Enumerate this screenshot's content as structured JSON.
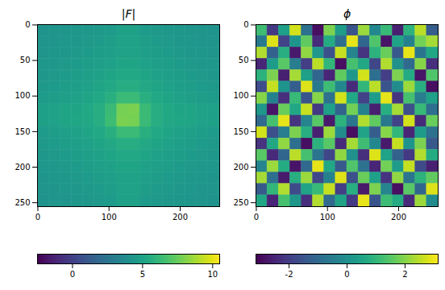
{
  "chart_data": [
    {
      "type": "heatmap",
      "title": "|F|",
      "color": "viridis",
      "xlim": [
        -0.5,
        255.5
      ],
      "ylim": [
        255.5,
        -0.5
      ],
      "xticks": [
        0,
        100,
        200
      ],
      "yticks": [
        0,
        50,
        100,
        150,
        200,
        250
      ],
      "cells": [
        [
          4.2,
          4.3,
          4.3,
          4.4,
          4.4,
          4.5,
          4.6,
          4.9,
          4.9,
          4.6,
          4.5,
          4.4,
          4.4,
          4.3,
          4.3,
          4.2
        ],
        [
          4.3,
          4.3,
          4.4,
          4.4,
          4.5,
          4.6,
          4.7,
          5.0,
          5.0,
          4.7,
          4.6,
          4.5,
          4.4,
          4.4,
          4.3,
          4.3
        ],
        [
          4.3,
          4.4,
          4.4,
          4.5,
          4.6,
          4.7,
          4.8,
          5.0,
          5.0,
          4.8,
          4.7,
          4.6,
          4.5,
          4.4,
          4.4,
          4.3
        ],
        [
          4.4,
          4.4,
          4.5,
          4.6,
          4.7,
          4.8,
          4.9,
          5.1,
          5.1,
          4.9,
          4.8,
          4.7,
          4.6,
          4.5,
          4.4,
          4.4
        ],
        [
          4.4,
          4.5,
          4.6,
          4.7,
          4.8,
          4.9,
          5.1,
          5.3,
          5.3,
          5.1,
          4.9,
          4.8,
          4.7,
          4.6,
          4.5,
          4.4
        ],
        [
          4.5,
          4.6,
          4.7,
          4.8,
          4.9,
          5.1,
          5.3,
          5.6,
          5.6,
          5.3,
          5.1,
          4.9,
          4.8,
          4.7,
          4.6,
          4.5
        ],
        [
          4.6,
          4.7,
          4.8,
          4.9,
          5.1,
          5.3,
          5.7,
          6.3,
          6.3,
          5.7,
          5.3,
          5.1,
          4.9,
          4.8,
          4.7,
          4.6
        ],
        [
          4.9,
          5.0,
          5.1,
          5.1,
          5.3,
          5.6,
          6.3,
          7.8,
          7.9,
          6.3,
          5.6,
          5.3,
          5.1,
          5.1,
          5.0,
          4.9
        ],
        [
          4.9,
          5.0,
          5.1,
          5.2,
          5.3,
          5.6,
          6.4,
          7.9,
          7.8,
          6.3,
          5.6,
          5.3,
          5.2,
          5.1,
          5.0,
          4.9
        ],
        [
          4.6,
          4.7,
          4.8,
          4.9,
          5.1,
          5.3,
          5.7,
          6.3,
          6.3,
          5.7,
          5.3,
          5.1,
          4.9,
          4.8,
          4.7,
          4.6
        ],
        [
          4.5,
          4.6,
          4.7,
          4.8,
          4.9,
          5.1,
          5.3,
          5.6,
          5.6,
          5.3,
          5.1,
          4.9,
          4.8,
          4.7,
          4.6,
          4.5
        ],
        [
          4.4,
          4.5,
          4.6,
          4.7,
          4.8,
          4.9,
          5.1,
          5.3,
          5.3,
          5.1,
          4.9,
          4.8,
          4.7,
          4.6,
          4.5,
          4.4
        ],
        [
          4.4,
          4.4,
          4.5,
          4.6,
          4.7,
          4.8,
          4.9,
          5.1,
          5.1,
          4.9,
          4.8,
          4.7,
          4.6,
          4.5,
          4.4,
          4.4
        ],
        [
          4.3,
          4.4,
          4.4,
          4.5,
          4.6,
          4.7,
          4.8,
          5.0,
          5.0,
          4.8,
          4.7,
          4.6,
          4.5,
          4.4,
          4.4,
          4.3
        ],
        [
          4.3,
          4.3,
          4.4,
          4.4,
          4.5,
          4.6,
          4.7,
          5.0,
          5.0,
          4.7,
          4.6,
          4.5,
          4.4,
          4.4,
          4.3,
          4.3
        ],
        [
          4.2,
          4.3,
          4.3,
          4.4,
          4.4,
          4.5,
          4.6,
          4.9,
          4.9,
          4.6,
          4.5,
          4.4,
          4.4,
          4.3,
          4.3,
          4.2
        ]
      ],
      "colorbar": {
        "range": [
          -2.5,
          10.5
        ],
        "ticks": [
          0,
          5,
          10
        ]
      }
    },
    {
      "type": "heatmap",
      "title": "ϕ",
      "color": "viridis",
      "xlim": [
        -0.5,
        255.5
      ],
      "ylim": [
        255.5,
        -0.5
      ],
      "xticks": [
        0,
        100,
        200
      ],
      "yticks": [
        0,
        50,
        100,
        150,
        200,
        250
      ],
      "cells": [
        [
          1.2,
          -2.1,
          0.4,
          2.7,
          -0.8,
          -2.9,
          1.9,
          0.3,
          -1.5,
          2.2,
          -0.2,
          1.1,
          -2.6,
          0.9,
          2.5,
          -1.3
        ],
        [
          -0.6,
          2.8,
          -1.9,
          0.1,
          1.6,
          -2.4,
          0.7,
          -0.9,
          2.9,
          -1.1,
          1.4,
          -2.8,
          0.5,
          -0.4,
          1.8,
          2.3
        ],
        [
          2.4,
          -1.2,
          0.8,
          -2.7,
          2.1,
          0.2,
          -1.6,
          2.6,
          -0.3,
          -2.2,
          0.9,
          1.7,
          -1.4,
          2.9,
          -0.7,
          0.6
        ],
        [
          -2.5,
          0.3,
          1.5,
          -0.5,
          -2.0,
          2.5,
          1.0,
          -2.9,
          1.3,
          0.6,
          -1.8,
          2.4,
          0.0,
          -1.0,
          2.0,
          -2.3
        ],
        [
          0.9,
          1.9,
          -2.6,
          2.3,
          0.4,
          -1.1,
          -2.5,
          1.6,
          0.2,
          2.7,
          -0.9,
          -2.0,
          1.9,
          0.7,
          -2.8,
          1.4
        ],
        [
          -1.7,
          2.6,
          0.1,
          -1.3,
          2.8,
          -0.6,
          1.2,
          -0.2,
          -2.4,
          1.0,
          2.5,
          -1.5,
          -0.1,
          2.2,
          0.8,
          -2.9
        ],
        [
          2.0,
          -0.4,
          -2.3,
          1.1,
          -1.5,
          2.0,
          -0.8,
          2.7,
          0.6,
          -1.9,
          0.3,
          2.9,
          -2.2,
          1.3,
          -0.5,
          0.4
        ],
        [
          0.2,
          -2.8,
          1.7,
          0.6,
          2.6,
          -2.1,
          0.4,
          -1.2,
          1.8,
          -0.4,
          -2.6,
          0.8,
          2.3,
          -1.6,
          1.1,
          -0.9
        ],
        [
          -1.0,
          1.3,
          2.9,
          -2.2,
          -0.3,
          1.5,
          -2.7,
          0.9,
          -0.7,
          2.4,
          1.6,
          -0.6,
          -1.9,
          2.7,
          -2.4,
          1.7
        ],
        [
          2.7,
          -1.6,
          -0.5,
          1.9,
          0.8,
          -2.6,
          2.2,
          -0.1,
          -2.9,
          0.5,
          -1.3,
          2.0,
          1.0,
          -2.5,
          0.3,
          -0.8
        ],
        [
          -2.2,
          0.6,
          2.1,
          -0.9,
          -2.9,
          0.9,
          1.5,
          -2.4,
          2.3,
          1.2,
          -0.2,
          -2.7,
          2.6,
          0.1,
          1.9,
          -1.4
        ],
        [
          1.5,
          -2.4,
          -1.1,
          2.5,
          1.3,
          -0.7,
          -1.8,
          2.1,
          0.0,
          -2.3,
          2.8,
          0.5,
          -1.2,
          -2.1,
          2.4,
          0.7
        ],
        [
          -0.3,
          2.2,
          0.7,
          -2.8,
          -1.0,
          2.9,
          0.6,
          -1.4,
          1.4,
          -0.8,
          -2.5,
          1.8,
          0.3,
          2.6,
          -1.7,
          -2.6
        ],
        [
          2.3,
          -0.9,
          -2.7,
          0.8,
          2.2,
          -1.8,
          -0.4,
          2.8,
          -1.6,
          1.7,
          0.4,
          -2.2,
          2.1,
          -0.7,
          0.9,
          1.6
        ],
        [
          -1.4,
          1.0,
          2.4,
          -1.7,
          0.5,
          1.1,
          2.6,
          -2.0,
          0.8,
          -2.7,
          1.9,
          -0.3,
          -2.9,
          1.5,
          -1.1,
          2.8
        ],
        [
          0.6,
          -2.5,
          1.3,
          0.2,
          -2.3,
          2.4,
          -1.0,
          0.5,
          -2.1,
          2.9,
          -1.5,
          1.2,
          0.7,
          -2.4,
          2.2,
          -0.1
        ]
      ],
      "colorbar": {
        "range": [
          -3.14,
          3.14
        ],
        "ticks": [
          -2,
          0,
          2
        ]
      }
    }
  ]
}
